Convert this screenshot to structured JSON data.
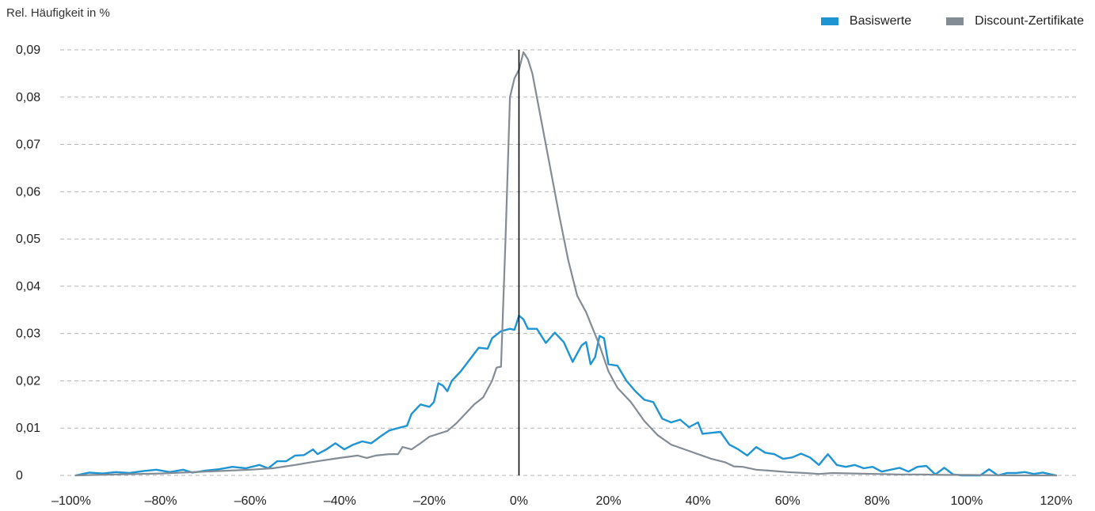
{
  "chart_data": {
    "type": "line",
    "title": "",
    "ylabel": "Rel. Häufigkeit in %",
    "xlabel": "",
    "ylim": [
      0,
      0.09
    ],
    "xlim": [
      -100,
      120
    ],
    "grid": "horizontal dashed",
    "legend_position": "top-right",
    "y_ticks": [
      0,
      0.01,
      0.02,
      0.03,
      0.04,
      0.05,
      0.06,
      0.07,
      0.08,
      0.09
    ],
    "y_tick_labels": [
      "0",
      "0,01",
      "0,02",
      "0,03",
      "0,04",
      "0,05",
      "0,06",
      "0,07",
      "0,08",
      "0,09"
    ],
    "x_ticks": [
      -100,
      -80,
      -60,
      -40,
      -20,
      0,
      20,
      40,
      60,
      80,
      100,
      120
    ],
    "x_tick_labels": [
      "–100%",
      "–80%",
      "–60%",
      "–40%",
      "–20%",
      "0%",
      "20%",
      "40%",
      "60%",
      "80%",
      "100%",
      "120%"
    ],
    "reference_line_x": 0,
    "series": [
      {
        "name": "Basiswerte",
        "color": "#1f94d2",
        "points": [
          [
            -99,
            0
          ],
          [
            -96,
            0.0006
          ],
          [
            -93,
            0.0004
          ],
          [
            -90,
            0.0007
          ],
          [
            -87,
            0.0005
          ],
          [
            -84,
            0.0009
          ],
          [
            -81,
            0.0012
          ],
          [
            -78,
            0.0007
          ],
          [
            -75,
            0.0012
          ],
          [
            -73,
            0.0006
          ],
          [
            -70,
            0.001
          ],
          [
            -67,
            0.0013
          ],
          [
            -64,
            0.0018
          ],
          [
            -61,
            0.0015
          ],
          [
            -58,
            0.0022
          ],
          [
            -56,
            0.0015
          ],
          [
            -54,
            0.003
          ],
          [
            -52,
            0.003
          ],
          [
            -50,
            0.0042
          ],
          [
            -48,
            0.0043
          ],
          [
            -46,
            0.0055
          ],
          [
            -45,
            0.0045
          ],
          [
            -43,
            0.0055
          ],
          [
            -41,
            0.0068
          ],
          [
            -39,
            0.0055
          ],
          [
            -37,
            0.0065
          ],
          [
            -35,
            0.0072
          ],
          [
            -33,
            0.0068
          ],
          [
            -31,
            0.0082
          ],
          [
            -29,
            0.0095
          ],
          [
            -27,
            0.01
          ],
          [
            -25,
            0.0105
          ],
          [
            -24,
            0.013
          ],
          [
            -22,
            0.015
          ],
          [
            -20,
            0.0145
          ],
          [
            -19,
            0.0155
          ],
          [
            -18,
            0.0195
          ],
          [
            -17,
            0.019
          ],
          [
            -16,
            0.0178
          ],
          [
            -15,
            0.02
          ],
          [
            -13,
            0.022
          ],
          [
            -11,
            0.0245
          ],
          [
            -9,
            0.027
          ],
          [
            -7,
            0.0268
          ],
          [
            -6,
            0.029
          ],
          [
            -4,
            0.0305
          ],
          [
            -2,
            0.031
          ],
          [
            -1,
            0.0308
          ],
          [
            0,
            0.0338
          ],
          [
            1,
            0.033
          ],
          [
            2,
            0.031
          ],
          [
            4,
            0.031
          ],
          [
            6,
            0.028
          ],
          [
            8,
            0.0302
          ],
          [
            10,
            0.0282
          ],
          [
            12,
            0.024
          ],
          [
            14,
            0.0275
          ],
          [
            15,
            0.0282
          ],
          [
            16,
            0.0235
          ],
          [
            17,
            0.025
          ],
          [
            18,
            0.0295
          ],
          [
            19,
            0.029
          ],
          [
            20,
            0.0235
          ],
          [
            22,
            0.0232
          ],
          [
            24,
            0.02
          ],
          [
            26,
            0.0178
          ],
          [
            28,
            0.016
          ],
          [
            30,
            0.0155
          ],
          [
            32,
            0.012
          ],
          [
            34,
            0.0112
          ],
          [
            36,
            0.0118
          ],
          [
            38,
            0.0102
          ],
          [
            40,
            0.0112
          ],
          [
            41,
            0.0088
          ],
          [
            43,
            0.009
          ],
          [
            45,
            0.0092
          ],
          [
            47,
            0.0065
          ],
          [
            49,
            0.0055
          ],
          [
            51,
            0.0042
          ],
          [
            53,
            0.006
          ],
          [
            55,
            0.0048
          ],
          [
            57,
            0.0045
          ],
          [
            59,
            0.0035
          ],
          [
            61,
            0.0038
          ],
          [
            63,
            0.0046
          ],
          [
            65,
            0.0038
          ],
          [
            67,
            0.0022
          ],
          [
            69,
            0.0045
          ],
          [
            71,
            0.0022
          ],
          [
            73,
            0.0018
          ],
          [
            75,
            0.0022
          ],
          [
            77,
            0.0015
          ],
          [
            79,
            0.0018
          ],
          [
            81,
            0.0008
          ],
          [
            83,
            0.0012
          ],
          [
            85,
            0.0016
          ],
          [
            87,
            0.0008
          ],
          [
            89,
            0.0018
          ],
          [
            91,
            0.002
          ],
          [
            93,
            0.0002
          ],
          [
            95,
            0.0016
          ],
          [
            97,
            0.0002
          ],
          [
            99,
            0
          ],
          [
            103,
            0
          ],
          [
            105,
            0.0013
          ],
          [
            107,
            0
          ],
          [
            109,
            0.0005
          ],
          [
            111,
            0.0005
          ],
          [
            113,
            0.0007
          ],
          [
            115,
            0.0003
          ],
          [
            117,
            0.0006
          ],
          [
            120,
            0
          ]
        ]
      },
      {
        "name": "Discount-Zertifikate",
        "color": "#838c95",
        "points": [
          [
            -99,
            0
          ],
          [
            -95,
            0.0001
          ],
          [
            -90,
            0.0002
          ],
          [
            -85,
            0.0003
          ],
          [
            -80,
            0.0004
          ],
          [
            -75,
            0.0006
          ],
          [
            -70,
            0.0008
          ],
          [
            -65,
            0.001
          ],
          [
            -60,
            0.0012
          ],
          [
            -55,
            0.0015
          ],
          [
            -50,
            0.0022
          ],
          [
            -45,
            0.003
          ],
          [
            -40,
            0.0037
          ],
          [
            -36,
            0.0042
          ],
          [
            -34,
            0.0037
          ],
          [
            -32,
            0.0042
          ],
          [
            -29,
            0.0045
          ],
          [
            -27,
            0.0045
          ],
          [
            -26,
            0.006
          ],
          [
            -24,
            0.0055
          ],
          [
            -22,
            0.0068
          ],
          [
            -20,
            0.0082
          ],
          [
            -16,
            0.0094
          ],
          [
            -14,
            0.011
          ],
          [
            -12,
            0.013
          ],
          [
            -10,
            0.015
          ],
          [
            -8,
            0.0165
          ],
          [
            -6,
            0.02
          ],
          [
            -5,
            0.0228
          ],
          [
            -4,
            0.023
          ],
          [
            -3,
            0.05
          ],
          [
            -2,
            0.08
          ],
          [
            -1,
            0.084
          ],
          [
            0,
            0.0858
          ],
          [
            1,
            0.0895
          ],
          [
            2,
            0.088
          ],
          [
            3,
            0.085
          ],
          [
            5,
            0.075
          ],
          [
            7,
            0.065
          ],
          [
            9,
            0.055
          ],
          [
            11,
            0.0455
          ],
          [
            13,
            0.038
          ],
          [
            15,
            0.0345
          ],
          [
            18,
            0.0275
          ],
          [
            20,
            0.022
          ],
          [
            22,
            0.0185
          ],
          [
            25,
            0.0155
          ],
          [
            28,
            0.0115
          ],
          [
            31,
            0.0085
          ],
          [
            34,
            0.0065
          ],
          [
            37,
            0.0055
          ],
          [
            40,
            0.0045
          ],
          [
            43,
            0.0035
          ],
          [
            46,
            0.0028
          ],
          [
            48,
            0.0019
          ],
          [
            50,
            0.0018
          ],
          [
            53,
            0.0012
          ],
          [
            56,
            0.001
          ],
          [
            60,
            0.0007
          ],
          [
            64,
            0.0005
          ],
          [
            67,
            0.0003
          ],
          [
            70,
            0.0005
          ],
          [
            75,
            0.0004
          ],
          [
            80,
            0.0003
          ],
          [
            85,
            0.0002
          ],
          [
            90,
            0.0002
          ],
          [
            95,
            0.0001
          ],
          [
            100,
            0.0001
          ],
          [
            110,
            0
          ],
          [
            120,
            0
          ]
        ]
      }
    ]
  }
}
